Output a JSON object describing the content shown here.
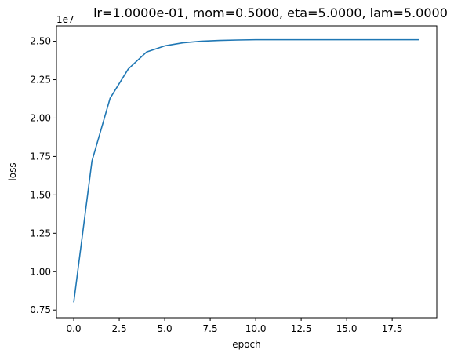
{
  "chart_data": {
    "type": "line",
    "title": "lr=1.0000e-01, mom=0.5000, eta=5.0000, lam=5.0000",
    "xlabel": "epoch",
    "ylabel": "loss",
    "y_offset_label": "1e7",
    "xlim": [
      -0.95,
      19.95
    ],
    "ylim": [
      0.7,
      2.6
    ],
    "x_ticks": [
      0.0,
      2.5,
      5.0,
      7.5,
      10.0,
      12.5,
      15.0,
      17.5
    ],
    "x_tick_labels": [
      "0.0",
      "2.5",
      "5.0",
      "7.5",
      "10.0",
      "12.5",
      "15.0",
      "17.5"
    ],
    "y_ticks": [
      0.75,
      1.0,
      1.25,
      1.5,
      1.75,
      2.0,
      2.25,
      2.5
    ],
    "y_tick_labels": [
      "0.75",
      "1.00",
      "1.25",
      "1.50",
      "1.75",
      "2.00",
      "2.25",
      "2.50"
    ],
    "grid": false,
    "series": [
      {
        "color": "#1f77b4",
        "x": [
          0,
          1,
          2,
          3,
          4,
          5,
          6,
          7,
          8,
          9,
          10,
          11,
          12,
          13,
          14,
          15,
          16,
          17,
          18,
          19
        ],
        "y": [
          0.8,
          1.72,
          2.13,
          2.32,
          2.43,
          2.47,
          2.49,
          2.5,
          2.505,
          2.508,
          2.51,
          2.51,
          2.51,
          2.51,
          2.51,
          2.51,
          2.51,
          2.51,
          2.51,
          2.51
        ]
      }
    ]
  }
}
